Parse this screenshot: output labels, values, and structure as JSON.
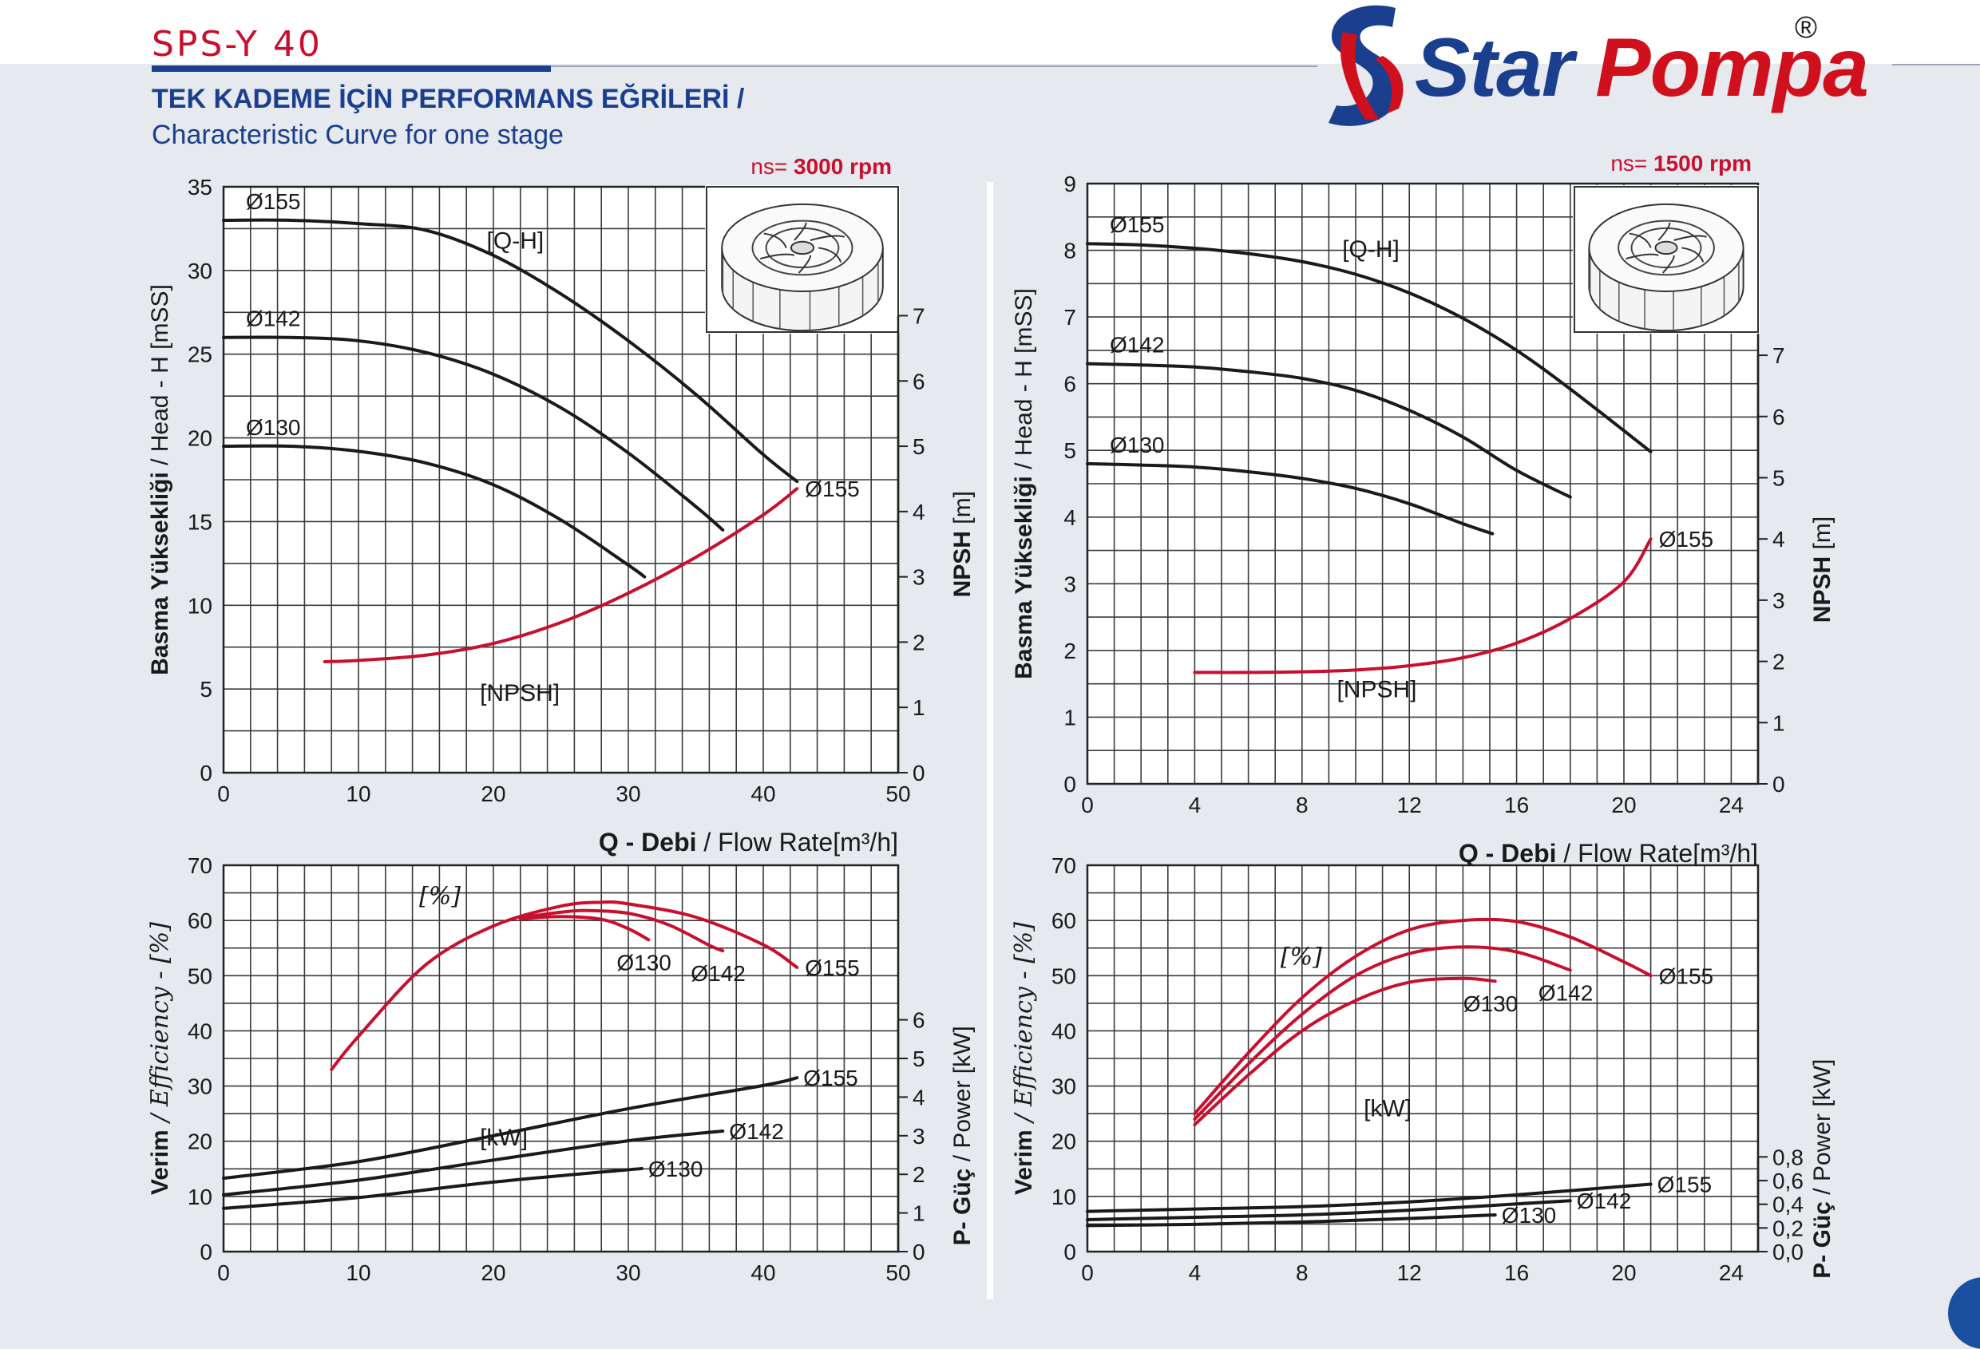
{
  "header": {
    "model": "SPS-Y 40",
    "title_tr": "TEK KADEME İÇİN PERFORMANS EĞRİLERİ  /",
    "title_en": "Characteristic Curve for one stage"
  },
  "logo": {
    "brand_blue": "Star ",
    "brand_red": "Pompa",
    "registered": "®",
    "brand_color_blue": "#1b3f8f",
    "brand_color_red": "#d0101c"
  },
  "colors": {
    "npsh_efficiency_curve": "#c8102e",
    "head_power_curve": "#1a1a1a",
    "grid": "#3a3a3a",
    "plot_background": "#ffffff"
  },
  "chart_data": [
    {
      "id": "head_3000",
      "type": "line",
      "speed_label_prefix": "ns=",
      "speed_label_value": "3000 rpm",
      "ylabel_bold": "Basma Yüksekliği",
      "ylabel_rest": " / Head - H [mSS]",
      "y2label_bold": "NPSH",
      "y2label_rest": " [m]",
      "xlabel_bold": "Q - Debi",
      "xlabel_rest": " / Flow Rate[m³/h]",
      "xlim": [
        0,
        50
      ],
      "ylim": [
        0,
        35
      ],
      "y2lim": [
        0,
        7
      ],
      "x_ticks": [
        0,
        10,
        20,
        30,
        40,
        50
      ],
      "y_ticks": [
        0,
        5,
        10,
        15,
        20,
        25,
        30,
        35
      ],
      "y2_ticks": [
        0,
        1,
        2,
        3,
        4,
        5,
        6,
        7
      ],
      "curve_labels": [
        "[Q-H]",
        "[NPSH]"
      ],
      "series": [
        {
          "name": "Ø155",
          "color": "#1a1a1a",
          "x": [
            0,
            5,
            10,
            15,
            20,
            25,
            30,
            35,
            40,
            42.5
          ],
          "y": [
            33,
            33,
            32.8,
            32.4,
            30.9,
            28.6,
            25.8,
            22.6,
            19,
            17.4
          ]
        },
        {
          "name": "Ø142",
          "color": "#1a1a1a",
          "x": [
            0,
            5,
            10,
            15,
            20,
            25,
            30,
            35,
            37
          ],
          "y": [
            26,
            26,
            25.8,
            25.1,
            23.8,
            21.8,
            19.1,
            15.9,
            14.5
          ]
        },
        {
          "name": "Ø130",
          "color": "#1a1a1a",
          "x": [
            0,
            5,
            10,
            15,
            20,
            25,
            30,
            31.2
          ],
          "y": [
            19.5,
            19.5,
            19.2,
            18.5,
            17.2,
            15.1,
            12.4,
            11.7
          ]
        },
        {
          "name": "Ø155",
          "color": "#c8102e",
          "axis": "y2",
          "x": [
            7.5,
            10,
            15,
            20,
            25,
            30,
            35,
            40,
            42.5
          ],
          "y": [
            1.7,
            1.72,
            1.8,
            1.98,
            2.3,
            2.75,
            3.3,
            3.95,
            4.35
          ]
        }
      ]
    },
    {
      "id": "head_1500",
      "type": "line",
      "speed_label_prefix": "ns=",
      "speed_label_value": "1500 rpm",
      "ylabel_bold": "Basma Yüksekliği",
      "ylabel_rest": " / Head - H [mSS]",
      "y2label_bold": "NPSH",
      "y2label_rest": " [m]",
      "xlabel_bold": "Q - Debi",
      "xlabel_rest": " / Flow Rate[m³/h]",
      "xlim": [
        0,
        25
      ],
      "ylim": [
        0,
        9
      ],
      "y2lim": [
        0,
        7
      ],
      "x_ticks": [
        0,
        4,
        8,
        12,
        16,
        20,
        24
      ],
      "y_ticks": [
        0,
        1,
        2,
        3,
        4,
        5,
        6,
        7,
        8,
        9
      ],
      "y2_ticks": [
        0,
        1,
        2,
        3,
        4,
        5,
        6,
        7
      ],
      "curve_labels": [
        "[Q-H]",
        "[NPSH]"
      ],
      "series": [
        {
          "name": "Ø155",
          "color": "#1a1a1a",
          "x": [
            0,
            2,
            4,
            6,
            8,
            10,
            12,
            14,
            16,
            18,
            21
          ],
          "y": [
            8.1,
            8.08,
            8.03,
            7.95,
            7.83,
            7.64,
            7.36,
            6.98,
            6.5,
            5.92,
            4.98
          ]
        },
        {
          "name": "Ø142",
          "color": "#1a1a1a",
          "x": [
            0,
            2,
            4,
            6,
            8,
            10,
            12,
            14,
            16,
            18
          ],
          "y": [
            6.3,
            6.28,
            6.25,
            6.18,
            6.08,
            5.9,
            5.6,
            5.2,
            4.7,
            4.3
          ]
        },
        {
          "name": "Ø130",
          "color": "#1a1a1a",
          "x": [
            0,
            2,
            4,
            6,
            8,
            10,
            12,
            14,
            15.1
          ],
          "y": [
            4.8,
            4.78,
            4.75,
            4.68,
            4.58,
            4.43,
            4.2,
            3.9,
            3.75
          ]
        },
        {
          "name": "Ø155",
          "color": "#c8102e",
          "axis": "y2",
          "x": [
            4,
            6,
            8,
            10,
            12,
            14,
            16,
            18,
            20,
            21
          ],
          "y": [
            1.82,
            1.82,
            1.83,
            1.86,
            1.93,
            2.06,
            2.3,
            2.7,
            3.3,
            4.0
          ]
        }
      ]
    },
    {
      "id": "eff_power_3000",
      "type": "line",
      "ylabel_bold": "Verim",
      "ylabel_rest": " / Efficiency -  [%]",
      "y2label_bold": "P- Güç",
      "y2label_rest": " / Power [kW]",
      "xlim": [
        0,
        50
      ],
      "ylim": [
        0,
        70
      ],
      "y2lim": [
        0,
        6
      ],
      "x_ticks": [
        0,
        10,
        20,
        30,
        40,
        50
      ],
      "y_ticks": [
        0,
        10,
        20,
        30,
        40,
        50,
        60,
        70
      ],
      "y2_ticks": [
        0,
        1,
        2,
        3,
        4,
        5,
        6
      ],
      "y2_tick_labels": [
        "0",
        "1",
        "2",
        "3",
        "4",
        "5",
        "6"
      ],
      "curve_labels": [
        "[%]",
        "[kW]"
      ],
      "series": [
        {
          "name": "Ø155",
          "color": "#c8102e",
          "kind": "efficiency",
          "x": [
            8,
            10,
            15,
            20,
            25,
            28,
            30,
            35,
            40,
            42.5
          ],
          "y": [
            33,
            39,
            52,
            59,
            62.6,
            63.3,
            63,
            60.6,
            55.6,
            51.5
          ]
        },
        {
          "name": "Ø142",
          "color": "#c8102e",
          "kind": "efficiency",
          "x": [
            22,
            25,
            27,
            30,
            33,
            36,
            37
          ],
          "y": [
            60.5,
            61.5,
            61.8,
            61.3,
            59.2,
            55.5,
            54.5
          ]
        },
        {
          "name": "Ø130",
          "color": "#c8102e",
          "kind": "efficiency",
          "x": [
            22,
            25,
            28,
            30,
            31.5
          ],
          "y": [
            60.3,
            60.7,
            60.2,
            58.5,
            56.5
          ]
        },
        {
          "name": "Ø155",
          "color": "#1a1a1a",
          "axis": "y2",
          "x": [
            0,
            10,
            20,
            30,
            40,
            42.5
          ],
          "y": [
            1.9,
            2.33,
            3.0,
            3.7,
            4.3,
            4.5
          ]
        },
        {
          "name": "Ø142",
          "color": "#1a1a1a",
          "axis": "y2",
          "x": [
            0,
            10,
            20,
            30,
            37
          ],
          "y": [
            1.47,
            1.85,
            2.37,
            2.87,
            3.12
          ]
        },
        {
          "name": "Ø130",
          "color": "#1a1a1a",
          "axis": "y2",
          "x": [
            0,
            10,
            20,
            31
          ],
          "y": [
            1.12,
            1.4,
            1.8,
            2.15
          ]
        }
      ]
    },
    {
      "id": "eff_power_1500",
      "type": "line",
      "ylabel_bold": "Verim",
      "ylabel_rest": " / Efficiency -  [%]",
      "y2label_bold": "P- Güç",
      "y2label_rest": " / Power [kW]",
      "xlim": [
        0,
        25
      ],
      "ylim": [
        0,
        70
      ],
      "y2lim": [
        0,
        1.4
      ],
      "x_ticks": [
        0,
        4,
        8,
        12,
        16,
        20,
        24
      ],
      "y_ticks": [
        0,
        10,
        20,
        30,
        40,
        50,
        60,
        70
      ],
      "y2_ticks": [
        0,
        0.2,
        0.4,
        0.6,
        0.8
      ],
      "y2_tick_labels": [
        "0,0",
        "0,2",
        "0,4",
        "0,6",
        "0,8"
      ],
      "curve_labels": [
        "[%]",
        "[kW]"
      ],
      "series": [
        {
          "name": "Ø155",
          "color": "#c8102e",
          "kind": "efficiency",
          "x": [
            4,
            6,
            8,
            10,
            12,
            14,
            16,
            18,
            20,
            21
          ],
          "y": [
            25,
            36,
            46,
            53.5,
            58.3,
            60,
            59.8,
            57,
            52.5,
            50
          ]
        },
        {
          "name": "Ø142",
          "color": "#c8102e",
          "kind": "efficiency",
          "x": [
            4,
            6,
            8,
            10,
            12,
            14,
            16,
            18
          ],
          "y": [
            24,
            34,
            43,
            50,
            54,
            55.2,
            54.3,
            51
          ]
        },
        {
          "name": "Ø130",
          "color": "#c8102e",
          "kind": "efficiency",
          "x": [
            4,
            6,
            8,
            10,
            12,
            14,
            15.2
          ],
          "y": [
            23,
            32,
            40,
            45.5,
            48.8,
            49.5,
            49
          ]
        },
        {
          "name": "Ø155",
          "color": "#1a1a1a",
          "axis": "y2",
          "x": [
            0,
            4,
            8,
            12,
            16,
            21
          ],
          "y": [
            0.34,
            0.36,
            0.38,
            0.42,
            0.48,
            0.57
          ]
        },
        {
          "name": "Ø142",
          "color": "#1a1a1a",
          "axis": "y2",
          "x": [
            0,
            4,
            8,
            12,
            18
          ],
          "y": [
            0.27,
            0.29,
            0.31,
            0.35,
            0.43
          ]
        },
        {
          "name": "Ø130",
          "color": "#1a1a1a",
          "axis": "y2",
          "x": [
            0,
            4,
            8,
            12,
            15.2
          ],
          "y": [
            0.22,
            0.23,
            0.25,
            0.28,
            0.31
          ]
        }
      ]
    }
  ]
}
